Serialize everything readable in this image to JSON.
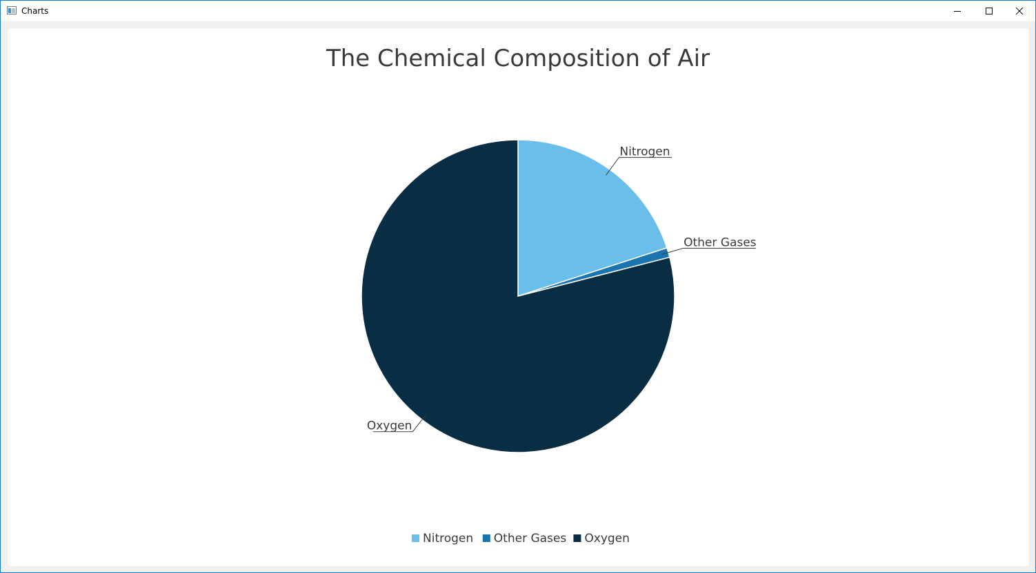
{
  "window": {
    "title": "Charts",
    "app_icon": "chart-window-icon",
    "controls": [
      "minimize-icon",
      "maximize-icon",
      "close-icon"
    ]
  },
  "chart_data": {
    "type": "pie",
    "title": "The Chemical Composition of Air",
    "slices": [
      {
        "label": "Nitrogen",
        "value": 20,
        "color": "#6abfea"
      },
      {
        "label": "Other Gases",
        "value": 1,
        "color": "#1a74ad"
      },
      {
        "label": "Oxygen",
        "value": 79,
        "color": "#092d42"
      }
    ],
    "start_angle_deg": 0,
    "direction": "clockwise",
    "legend_position": "bottom",
    "slice_border_color": "#ffffff",
    "label_color": "#3a3a3a"
  }
}
